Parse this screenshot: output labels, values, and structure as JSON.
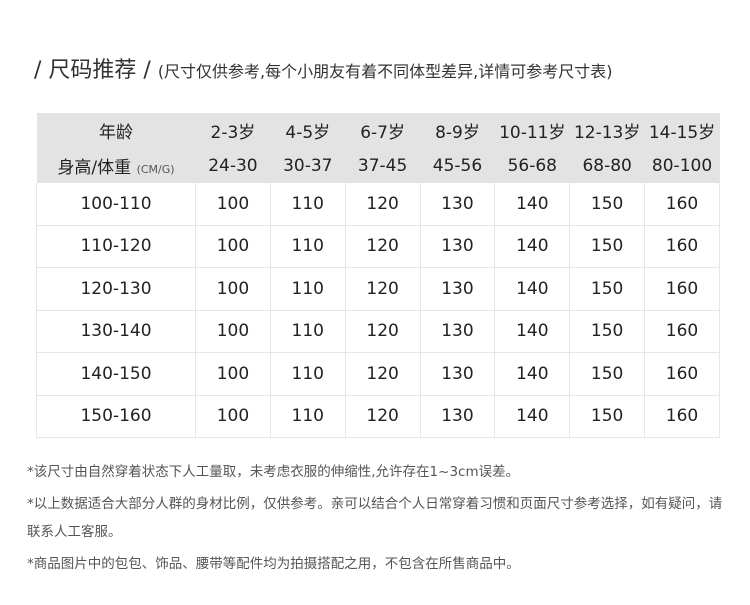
{
  "title": {
    "main": "/ 尺码推荐 /",
    "sub": "(尺寸仅供参考,每个小朋友有着不同体型差异,详情可参考尺寸表)"
  },
  "table": {
    "age_label": "年龄",
    "ages": [
      "2-3岁",
      "4-5岁",
      "6-7岁",
      "8-9岁",
      "10-11岁",
      "12-13岁",
      "14-15岁"
    ],
    "hw_label": "身高/体重",
    "hw_unit": "(CM/G)",
    "weights": [
      "24-30",
      "30-37",
      "37-45",
      "45-56",
      "56-68",
      "68-80",
      "80-100"
    ],
    "rows": [
      {
        "height": "100-110",
        "sizes": [
          "100",
          "110",
          "120",
          "130",
          "140",
          "150",
          "160"
        ]
      },
      {
        "height": "110-120",
        "sizes": [
          "100",
          "110",
          "120",
          "130",
          "140",
          "150",
          "160"
        ]
      },
      {
        "height": "120-130",
        "sizes": [
          "100",
          "110",
          "120",
          "130",
          "140",
          "150",
          "160"
        ]
      },
      {
        "height": "130-140",
        "sizes": [
          "100",
          "110",
          "120",
          "130",
          "140",
          "150",
          "160"
        ]
      },
      {
        "height": "140-150",
        "sizes": [
          "100",
          "110",
          "120",
          "130",
          "140",
          "150",
          "160"
        ]
      },
      {
        "height": "150-160",
        "sizes": [
          "100",
          "110",
          "120",
          "130",
          "140",
          "150",
          "160"
        ]
      }
    ]
  },
  "notes": [
    "*该尺寸由自然穿着状态下人工量取，未考虑衣服的伸缩性,允许存在1~3cm误差。",
    "*以上数据适合大部分人群的身材比例，仅供参考。亲可以结合个人日常穿着习惯和页面尺寸参考选择，如有疑问，请联系人工客服。",
    "*商品图片中的包包、饰品、腰带等配件均为拍摄搭配之用，不包含在所售商品中。"
  ]
}
